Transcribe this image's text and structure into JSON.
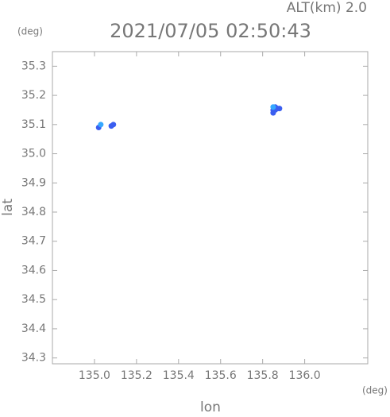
{
  "chart_data": {
    "type": "scatter",
    "title": "2021/07/05 02:50:43",
    "subtitle": "ALT(km) 2.0",
    "x_label": "lon",
    "y_label": "lat",
    "x_unit": "(deg)",
    "y_unit": "(deg)",
    "xlim": [
      134.8,
      136.3
    ],
    "ylim": [
      34.28,
      35.35
    ],
    "xticks": [
      {
        "value": 135,
        "label": "135.0"
      },
      135.2,
      135.4,
      135.6,
      135.8,
      {
        "value": 136,
        "label": "136.0"
      }
    ],
    "yticks": [
      34.3,
      34.4,
      34.5,
      34.6,
      34.7,
      34.8,
      34.9,
      {
        "value": 35,
        "label": "35.0"
      },
      35.1,
      35.2,
      35.3
    ],
    "series": [
      {
        "color": "#3a5ef0",
        "x": [
          135.02,
          135.08,
          135.09,
          135.85,
          135.86,
          135.87,
          135.88,
          135.85,
          135.86
        ],
        "values": [
          35.09,
          35.095,
          35.1,
          35.15,
          35.16,
          35.155,
          35.155,
          35.14,
          35.15
        ]
      },
      {
        "color": "#35a8ff",
        "x": [
          135.03,
          135.85
        ],
        "values": [
          35.1,
          35.16
        ]
      }
    ]
  }
}
